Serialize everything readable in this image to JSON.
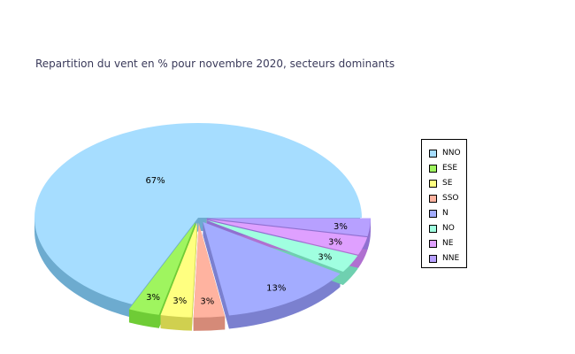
{
  "chart_data": {
    "type": "pie",
    "title": "Repartition du vent en % pour novembre 2020, secteurs dominants",
    "slices": [
      {
        "name": "NNO",
        "value": 67,
        "label": "67%",
        "color": "#a6ddff",
        "dark": "#6dabcf",
        "exploded": false
      },
      {
        "name": "ESE",
        "value": 3,
        "label": "3%",
        "color": "#9ff55f",
        "dark": "#6fcc36",
        "exploded": true
      },
      {
        "name": "SE",
        "value": 3,
        "label": "3%",
        "color": "#ffff80",
        "dark": "#d0d04f",
        "exploded": true
      },
      {
        "name": "SSO",
        "value": 3,
        "label": "3%",
        "color": "#ffb3a0",
        "dark": "#d58a78",
        "exploded": true
      },
      {
        "name": "N",
        "value": 13,
        "label": "13%",
        "color": "#a3acff",
        "dark": "#7b80cf",
        "exploded": true
      },
      {
        "name": "NO",
        "value": 3,
        "label": "3%",
        "color": "#a0ffe0",
        "dark": "#6fd0b0",
        "exploded": true
      },
      {
        "name": "NE",
        "value": 3,
        "label": "3%",
        "color": "#dfa0ff",
        "dark": "#b070d0",
        "exploded": true
      },
      {
        "name": "NNE",
        "value": 3,
        "label": "3%",
        "color": "#b7a0ff",
        "dark": "#9070d0",
        "exploded": true
      }
    ],
    "legend": [
      "NNO",
      "ESE",
      "SE",
      "SSO",
      "N",
      "NO",
      "NE",
      "NNE"
    ],
    "legend_position": "right"
  }
}
